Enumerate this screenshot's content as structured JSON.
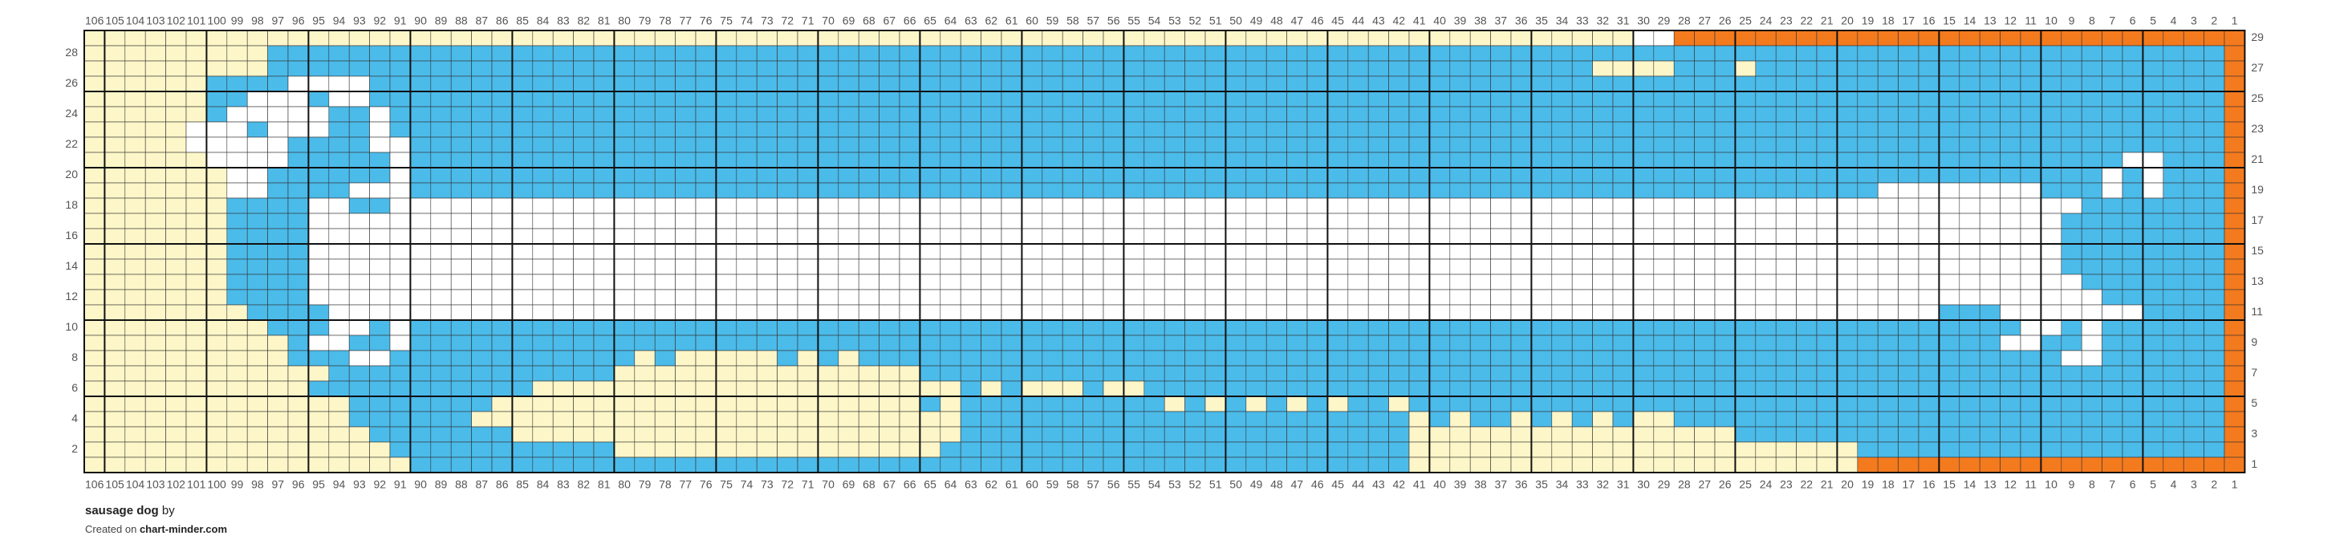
{
  "header": {
    "title": "sausage dog",
    "byline": "by",
    "created_text": "Created on",
    "site": "chart-minder.com"
  },
  "grid": {
    "columns": [
      106,
      105,
      104,
      103,
      102,
      101,
      100,
      99,
      98,
      97,
      96,
      95,
      94,
      93,
      92,
      91,
      90,
      89,
      88,
      87,
      86,
      85,
      84,
      83,
      82,
      81,
      80,
      79,
      78,
      77,
      76,
      75,
      74,
      73,
      72,
      71,
      70,
      69,
      68,
      67,
      66,
      65,
      64,
      63,
      62,
      61,
      60,
      59,
      58,
      57,
      56,
      55,
      54,
      53,
      52,
      51,
      50,
      49,
      48,
      47,
      46,
      45,
      44,
      43,
      42,
      41,
      40,
      39,
      38,
      37,
      36,
      35,
      34,
      33,
      32,
      31,
      30,
      29,
      28,
      27,
      26,
      25,
      24,
      23,
      22,
      21,
      20,
      19,
      18,
      17,
      16,
      15,
      14,
      13,
      12,
      11,
      10,
      9,
      8,
      7,
      6,
      5,
      4,
      3,
      2,
      1
    ],
    "rows": [
      29,
      28,
      27,
      26,
      25,
      24,
      23,
      22,
      21,
      20,
      19,
      18,
      17,
      16,
      15,
      14,
      13,
      12,
      11,
      10,
      9,
      8,
      7,
      6,
      5,
      4,
      3,
      2,
      1
    ],
    "left_row_labels": [
      28,
      26,
      24,
      22,
      20,
      18,
      16,
      14,
      12,
      10,
      8,
      6,
      4,
      2
    ],
    "right_row_labels": [
      29,
      27,
      25,
      23,
      21,
      19,
      17,
      15,
      13,
      11,
      9,
      7,
      5,
      3,
      1
    ],
    "palette": {
      "Y": "#fdf6c8",
      "B": "#4bbbea",
      "W": "#ffffff",
      "O": "#f47a1e"
    },
    "pattern": [
      [
        [
          "Y",
          76
        ],
        [
          "W",
          2
        ],
        [
          "O",
          28
        ]
      ],
      [
        [
          "Y",
          9
        ],
        [
          "B",
          96
        ],
        [
          "O",
          1
        ]
      ],
      [
        [
          "Y",
          9
        ],
        [
          "B",
          65
        ],
        [
          "Y",
          4
        ],
        [
          "B",
          3
        ],
        [
          "Y",
          1
        ],
        [
          "B",
          23
        ],
        [
          "O",
          1
        ]
      ],
      [
        [
          "Y",
          6
        ],
        [
          "B",
          4
        ],
        [
          "W",
          4
        ],
        [
          "B",
          91
        ],
        [
          "O",
          1
        ]
      ],
      [
        [
          "Y",
          6
        ],
        [
          "B",
          2
        ],
        [
          "W",
          3
        ],
        [
          "B",
          1
        ],
        [
          "W",
          2
        ],
        [
          "B",
          91
        ],
        [
          "O",
          1
        ]
      ],
      [
        [
          "Y",
          6
        ],
        [
          "B",
          1
        ],
        [
          "W",
          5
        ],
        [
          "B",
          2
        ],
        [
          "W",
          1
        ],
        [
          "B",
          90
        ],
        [
          "O",
          1
        ]
      ],
      [
        [
          "Y",
          5
        ],
        [
          "W",
          3
        ],
        [
          "B",
          1
        ],
        [
          "W",
          3
        ],
        [
          "B",
          2
        ],
        [
          "W",
          1
        ],
        [
          "B",
          90
        ],
        [
          "O",
          1
        ]
      ],
      [
        [
          "Y",
          5
        ],
        [
          "W",
          5
        ],
        [
          "B",
          4
        ],
        [
          "W",
          2
        ],
        [
          "B",
          89
        ],
        [
          "O",
          1
        ]
      ],
      [
        [
          "Y",
          6
        ],
        [
          "W",
          4
        ],
        [
          "B",
          5
        ],
        [
          "W",
          1
        ],
        [
          "B",
          84
        ],
        [
          "W",
          2
        ],
        [
          "B",
          3
        ],
        [
          "O",
          1
        ]
      ],
      [
        [
          "Y",
          7
        ],
        [
          "W",
          2
        ],
        [
          "B",
          6
        ],
        [
          "W",
          1
        ],
        [
          "B",
          83
        ],
        [
          "W",
          1
        ],
        [
          "B",
          1
        ],
        [
          "W",
          1
        ],
        [
          "B",
          3
        ],
        [
          "O",
          1
        ]
      ],
      [
        [
          "Y",
          7
        ],
        [
          "W",
          2
        ],
        [
          "B",
          4
        ],
        [
          "W",
          3
        ],
        [
          "B",
          72
        ],
        [
          "W",
          8
        ],
        [
          "B",
          3
        ],
        [
          "W",
          1
        ],
        [
          "B",
          1
        ],
        [
          "W",
          1
        ],
        [
          "B",
          3
        ],
        [
          "O",
          1
        ]
      ],
      [
        [
          "Y",
          7
        ],
        [
          "B",
          4
        ],
        [
          "W",
          2
        ],
        [
          "B",
          2
        ],
        [
          "W",
          83
        ],
        [
          "B",
          7
        ],
        [
          "O",
          1
        ]
      ],
      [
        [
          "Y",
          7
        ],
        [
          "B",
          4
        ],
        [
          "W",
          86
        ],
        [
          "B",
          8
        ],
        [
          "O",
          1
        ]
      ],
      [
        [
          "Y",
          7
        ],
        [
          "B",
          4
        ],
        [
          "W",
          86
        ],
        [
          "B",
          8
        ],
        [
          "O",
          1
        ]
      ],
      [
        [
          "Y",
          7
        ],
        [
          "B",
          4
        ],
        [
          "W",
          86
        ],
        [
          "B",
          8
        ],
        [
          "O",
          1
        ]
      ],
      [
        [
          "Y",
          7
        ],
        [
          "B",
          4
        ],
        [
          "W",
          86
        ],
        [
          "B",
          8
        ],
        [
          "O",
          1
        ]
      ],
      [
        [
          "Y",
          7
        ],
        [
          "B",
          4
        ],
        [
          "W",
          87
        ],
        [
          "B",
          7
        ],
        [
          "O",
          1
        ]
      ],
      [
        [
          "Y",
          7
        ],
        [
          "B",
          4
        ],
        [
          "W",
          88
        ],
        [
          "B",
          6
        ],
        [
          "O",
          1
        ]
      ],
      [
        [
          "Y",
          8
        ],
        [
          "B",
          4
        ],
        [
          "W",
          79
        ],
        [
          "B",
          3
        ],
        [
          "W",
          7
        ],
        [
          "B",
          4
        ],
        [
          "O",
          1
        ]
      ],
      [
        [
          "Y",
          9
        ],
        [
          "B",
          3
        ],
        [
          "W",
          2
        ],
        [
          "B",
          1
        ],
        [
          "W",
          1
        ],
        [
          "B",
          79
        ],
        [
          "W",
          2
        ],
        [
          "B",
          1
        ],
        [
          "W",
          1
        ],
        [
          "B",
          6
        ],
        [
          "O",
          1
        ]
      ],
      [
        [
          "Y",
          10
        ],
        [
          "B",
          1
        ],
        [
          "W",
          2
        ],
        [
          "B",
          2
        ],
        [
          "W",
          1
        ],
        [
          "B",
          78
        ],
        [
          "W",
          2
        ],
        [
          "B",
          2
        ],
        [
          "W",
          1
        ],
        [
          "B",
          6
        ],
        [
          "O",
          1
        ]
      ],
      [
        [
          "Y",
          10
        ],
        [
          "B",
          3
        ],
        [
          "W",
          2
        ],
        [
          "B",
          12
        ],
        [
          "Y",
          1
        ],
        [
          "B",
          1
        ],
        [
          "Y",
          5
        ],
        [
          "B",
          1
        ],
        [
          "Y",
          1
        ],
        [
          "B",
          1
        ],
        [
          "Y",
          1
        ],
        [
          "B",
          59
        ],
        [
          "W",
          2
        ],
        [
          "B",
          6
        ],
        [
          "O",
          1
        ]
      ],
      [
        [
          "Y",
          12
        ],
        [
          "B",
          14
        ],
        [
          "Y",
          15
        ],
        [
          "B",
          64
        ],
        [
          "O",
          1
        ]
      ],
      [
        [
          "Y",
          11
        ],
        [
          "B",
          11
        ],
        [
          "Y",
          21
        ],
        [
          "B",
          1
        ],
        [
          "Y",
          1
        ],
        [
          "B",
          1
        ],
        [
          "Y",
          3
        ],
        [
          "B",
          1
        ],
        [
          "Y",
          2
        ],
        [
          "B",
          53
        ],
        [
          "O",
          1
        ]
      ],
      [
        [
          "Y",
          13
        ],
        [
          "B",
          7
        ],
        [
          "Y",
          21
        ],
        [
          "B",
          1
        ],
        [
          "Y",
          1
        ],
        [
          "B",
          10
        ],
        [
          "Y",
          1
        ],
        [
          "B",
          1
        ],
        [
          "Y",
          1
        ],
        [
          "B",
          1
        ],
        [
          "Y",
          1
        ],
        [
          "B",
          1
        ],
        [
          "Y",
          1
        ],
        [
          "B",
          1
        ],
        [
          "Y",
          1
        ],
        [
          "B",
          2
        ],
        [
          "Y",
          1
        ],
        [
          "B",
          40
        ],
        [
          "O",
          1
        ]
      ],
      [
        [
          "Y",
          13
        ],
        [
          "B",
          6
        ],
        [
          "Y",
          24
        ],
        [
          "B",
          22
        ],
        [
          "Y",
          1
        ],
        [
          "B",
          1
        ],
        [
          "Y",
          1
        ],
        [
          "B",
          2
        ],
        [
          "Y",
          1
        ],
        [
          "B",
          1
        ],
        [
          "Y",
          1
        ],
        [
          "B",
          1
        ],
        [
          "Y",
          1
        ],
        [
          "B",
          1
        ],
        [
          "Y",
          2
        ],
        [
          "B",
          27
        ],
        [
          "O",
          1
        ]
      ],
      [
        [
          "Y",
          14
        ],
        [
          "B",
          7
        ],
        [
          "Y",
          22
        ],
        [
          "B",
          22
        ],
        [
          "Y",
          16
        ],
        [
          "B",
          24
        ],
        [
          "O",
          1
        ]
      ],
      [
        [
          "Y",
          15
        ],
        [
          "B",
          11
        ],
        [
          "Y",
          16
        ],
        [
          "B",
          23
        ],
        [
          "Y",
          22
        ],
        [
          "B",
          18
        ],
        [
          "O",
          1
        ]
      ],
      [
        [
          "Y",
          16
        ],
        [
          "B",
          49
        ],
        [
          "Y",
          22
        ],
        [
          "O",
          19
        ]
      ]
    ]
  }
}
